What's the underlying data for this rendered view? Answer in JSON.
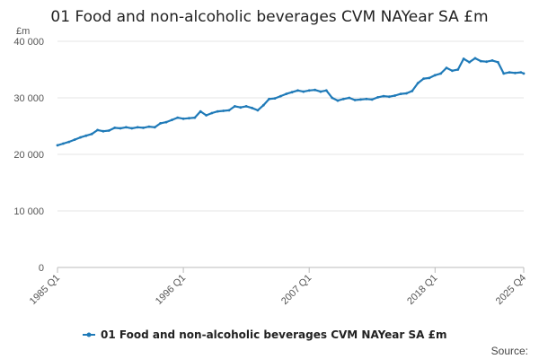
{
  "chart_data": {
    "type": "line",
    "title": "01 Food and non-alcoholic beverages CVM NAYear SA £m",
    "ylabel": "£m",
    "xlabel": "",
    "source_label": "Source:",
    "ylim": [
      0,
      40000
    ],
    "yticks": [
      0,
      10000,
      20000,
      30000,
      40000
    ],
    "ytick_labels": [
      "0",
      "10 000",
      "20 000",
      "30 000",
      "40 000"
    ],
    "xrange": [
      1985.0,
      2025.75
    ],
    "xticks": [
      1985.0,
      1996.0,
      2007.0,
      2018.0,
      2025.75
    ],
    "xtick_labels": [
      "1985 Q1",
      "1996 Q1",
      "2007 Q1",
      "2018 Q1",
      "2025 Q4"
    ],
    "grid": true,
    "legend": "bottom",
    "colors": {
      "series": "#1f7ab8",
      "grid": "#e6e6e6",
      "axis": "#bbbbbb"
    },
    "series": [
      {
        "name": "01 Food and non-alcoholic beverages CVM NAYear SA £m",
        "points": [
          [
            1985.0,
            21600
          ],
          [
            1985.5,
            21900
          ],
          [
            1986.0,
            22200
          ],
          [
            1986.5,
            22600
          ],
          [
            1987.0,
            23000
          ],
          [
            1987.5,
            23300
          ],
          [
            1988.0,
            23600
          ],
          [
            1988.5,
            24300
          ],
          [
            1989.0,
            24100
          ],
          [
            1989.5,
            24200
          ],
          [
            1990.0,
            24700
          ],
          [
            1990.5,
            24600
          ],
          [
            1991.0,
            24800
          ],
          [
            1991.5,
            24600
          ],
          [
            1992.0,
            24800
          ],
          [
            1992.5,
            24700
          ],
          [
            1993.0,
            24900
          ],
          [
            1993.5,
            24800
          ],
          [
            1994.0,
            25500
          ],
          [
            1994.5,
            25700
          ],
          [
            1995.0,
            26100
          ],
          [
            1995.5,
            26500
          ],
          [
            1996.0,
            26300
          ],
          [
            1996.5,
            26400
          ],
          [
            1997.0,
            26500
          ],
          [
            1997.5,
            27600
          ],
          [
            1998.0,
            26900
          ],
          [
            1998.5,
            27300
          ],
          [
            1999.0,
            27600
          ],
          [
            1999.5,
            27700
          ],
          [
            2000.0,
            27800
          ],
          [
            2000.5,
            28500
          ],
          [
            2001.0,
            28300
          ],
          [
            2001.5,
            28500
          ],
          [
            2002.0,
            28200
          ],
          [
            2002.5,
            27800
          ],
          [
            2003.0,
            28700
          ],
          [
            2003.5,
            29800
          ],
          [
            2004.0,
            29900
          ],
          [
            2004.5,
            30300
          ],
          [
            2005.0,
            30700
          ],
          [
            2005.5,
            31000
          ],
          [
            2006.0,
            31300
          ],
          [
            2006.5,
            31100
          ],
          [
            2007.0,
            31300
          ],
          [
            2007.5,
            31400
          ],
          [
            2008.0,
            31100
          ],
          [
            2008.5,
            31300
          ],
          [
            2009.0,
            30000
          ],
          [
            2009.5,
            29500
          ],
          [
            2010.0,
            29800
          ],
          [
            2010.5,
            30000
          ],
          [
            2011.0,
            29600
          ],
          [
            2011.5,
            29700
          ],
          [
            2012.0,
            29800
          ],
          [
            2012.5,
            29700
          ],
          [
            2013.0,
            30100
          ],
          [
            2013.5,
            30300
          ],
          [
            2014.0,
            30200
          ],
          [
            2014.5,
            30400
          ],
          [
            2015.0,
            30700
          ],
          [
            2015.5,
            30800
          ],
          [
            2016.0,
            31200
          ],
          [
            2016.5,
            32600
          ],
          [
            2017.0,
            33400
          ],
          [
            2017.5,
            33500
          ],
          [
            2018.0,
            34000
          ],
          [
            2018.5,
            34300
          ],
          [
            2019.0,
            35300
          ],
          [
            2019.5,
            34800
          ],
          [
            2020.0,
            35000
          ],
          [
            2020.5,
            36900
          ],
          [
            2021.0,
            36300
          ],
          [
            2021.5,
            37000
          ],
          [
            2022.0,
            36500
          ],
          [
            2022.5,
            36400
          ],
          [
            2023.0,
            36600
          ],
          [
            2023.5,
            36300
          ],
          [
            2024.0,
            34300
          ],
          [
            2024.5,
            34500
          ],
          [
            2025.0,
            34400
          ],
          [
            2025.5,
            34500
          ],
          [
            2025.75,
            34300
          ]
        ]
      }
    ]
  }
}
